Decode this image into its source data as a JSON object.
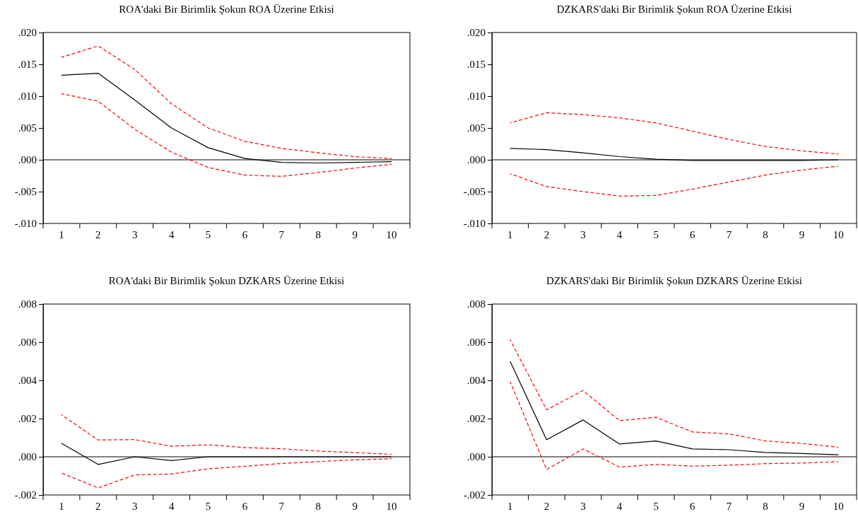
{
  "chart_data": [
    {
      "type": "line",
      "title": "ROA'daki Bir Birimlik Şokun ROA Üzerine Etkisi",
      "categories": [
        "1",
        "2",
        "3",
        "4",
        "5",
        "6",
        "7",
        "8",
        "9",
        "10"
      ],
      "ylim": [
        -0.01,
        0.02
      ],
      "yticks": [
        {
          "value": -0.01,
          "label": "-.010"
        },
        {
          "value": -0.005,
          "label": "-.005"
        },
        {
          "value": 0,
          "label": ".000"
        },
        {
          "value": 0.005,
          "label": ".005"
        },
        {
          "value": 0.01,
          "label": ".010"
        },
        {
          "value": 0.015,
          "label": ".015"
        },
        {
          "value": 0.02,
          "label": ".020"
        }
      ],
      "grid": false,
      "ref_lines": [
        {
          "axis": "y",
          "value": 0,
          "color": "#000000"
        }
      ],
      "series": [
        {
          "color": "#000000",
          "line_style": "solid",
          "values": [
            0.0133,
            0.0136,
            0.0094,
            0.005,
            0.0019,
            0.0002,
            -0.0004,
            -0.0005,
            -0.0004,
            -0.0003
          ]
        },
        {
          "color": "#ff0000",
          "line_style": "dashed",
          "values": [
            0.0161,
            0.0179,
            0.0142,
            0.0088,
            0.005,
            0.0029,
            0.0018,
            0.0011,
            0.0005,
            0.0002
          ]
        },
        {
          "color": "#ff0000",
          "line_style": "dashed",
          "values": [
            0.0104,
            0.0092,
            0.0048,
            0.0012,
            -0.0012,
            -0.0024,
            -0.0026,
            -0.002,
            -0.0013,
            -0.0007
          ]
        }
      ]
    },
    {
      "type": "line",
      "title": "DZKARS'daki Bir Birimlik Şokun ROA Üzerine Etkisi",
      "categories": [
        "1",
        "2",
        "3",
        "4",
        "5",
        "6",
        "7",
        "8",
        "9",
        "10"
      ],
      "ylim": [
        -0.01,
        0.02
      ],
      "yticks": [
        {
          "value": -0.01,
          "label": "-.010"
        },
        {
          "value": -0.005,
          "label": "-.005"
        },
        {
          "value": 0,
          "label": ".000"
        },
        {
          "value": 0.005,
          "label": ".005"
        },
        {
          "value": 0.01,
          "label": ".010"
        },
        {
          "value": 0.015,
          "label": ".015"
        },
        {
          "value": 0.02,
          "label": ".020"
        }
      ],
      "grid": false,
      "ref_lines": [
        {
          "axis": "y",
          "value": 0,
          "color": "#000000"
        }
      ],
      "series": [
        {
          "color": "#000000",
          "line_style": "solid",
          "values": [
            0.0018,
            0.0016,
            0.0011,
            0.0005,
            0.0001,
            -0.0001,
            -0.0001,
            -0.0001,
            -0.0001,
            0
          ]
        },
        {
          "color": "#ff0000",
          "line_style": "dashed",
          "values": [
            0.0058,
            0.0074,
            0.0071,
            0.0066,
            0.0058,
            0.0045,
            0.0032,
            0.0021,
            0.0014,
            0.0009
          ]
        },
        {
          "color": "#ff0000",
          "line_style": "dashed",
          "values": [
            -0.0022,
            -0.0042,
            -0.005,
            -0.0057,
            -0.0056,
            -0.0046,
            -0.0035,
            -0.0024,
            -0.0016,
            -0.001
          ]
        }
      ]
    },
    {
      "type": "line",
      "title": "ROA'daki Bir Birimlik Şokun DZKARS Üzerine Etkisi",
      "categories": [
        "1",
        "2",
        "3",
        "4",
        "5",
        "6",
        "7",
        "8",
        "9",
        "10"
      ],
      "ylim": [
        -0.002,
        0.008
      ],
      "yticks": [
        {
          "value": -0.002,
          "label": "-.002"
        },
        {
          "value": 0,
          "label": ".000"
        },
        {
          "value": 0.002,
          "label": ".002"
        },
        {
          "value": 0.004,
          "label": ".004"
        },
        {
          "value": 0.006,
          "label": ".006"
        },
        {
          "value": 0.008,
          "label": ".008"
        }
      ],
      "grid": false,
      "ref_lines": [
        {
          "axis": "y",
          "value": 0,
          "color": "#000000"
        }
      ],
      "series": [
        {
          "color": "#000000",
          "line_style": "solid",
          "values": [
            0.0007,
            -0.0004,
            0,
            -0.0002,
            0,
            0,
            0,
            0,
            0,
            0
          ]
        },
        {
          "color": "#ff0000",
          "line_style": "dashed",
          "values": [
            0.0022,
            0.00088,
            0.0009,
            0.00055,
            0.00063,
            0.00048,
            0.00042,
            0.0003,
            0.00022,
            0.00013
          ]
        },
        {
          "color": "#ff0000",
          "line_style": "dashed",
          "values": [
            -0.00085,
            -0.00163,
            -0.00095,
            -0.0009,
            -0.00063,
            -0.0005,
            -0.00035,
            -0.00025,
            -0.00016,
            -0.0001
          ]
        }
      ]
    },
    {
      "type": "line",
      "title": "DZKARS'daki Bir Birimlik Şokun DZKARS Üzerine Etkisi",
      "categories": [
        "1",
        "2",
        "3",
        "4",
        "5",
        "6",
        "7",
        "8",
        "9",
        "10"
      ],
      "ylim": [
        -0.002,
        0.008
      ],
      "yticks": [
        {
          "value": -0.002,
          "label": "-.002"
        },
        {
          "value": 0,
          "label": ".000"
        },
        {
          "value": 0.002,
          "label": ".002"
        },
        {
          "value": 0.004,
          "label": ".004"
        },
        {
          "value": 0.006,
          "label": ".006"
        },
        {
          "value": 0.008,
          "label": ".008"
        }
      ],
      "grid": false,
      "ref_lines": [
        {
          "axis": "y",
          "value": 0,
          "color": "#000000"
        }
      ],
      "series": [
        {
          "color": "#000000",
          "line_style": "solid",
          "values": [
            0.005,
            0.00089,
            0.00193,
            0.00067,
            0.00083,
            0.00041,
            0.00037,
            0.00023,
            0.00017,
            0.00011
          ]
        },
        {
          "color": "#ff0000",
          "line_style": "dashed",
          "values": [
            0.00613,
            0.00246,
            0.00347,
            0.00189,
            0.00207,
            0.0013,
            0.0012,
            0.00083,
            0.0007,
            0.0005
          ]
        },
        {
          "color": "#ff0000",
          "line_style": "dashed",
          "values": [
            0.00394,
            -0.00067,
            0.00041,
            -0.00054,
            -0.0004,
            -0.00049,
            -0.00044,
            -0.00036,
            -0.00033,
            -0.00026
          ]
        }
      ]
    }
  ]
}
